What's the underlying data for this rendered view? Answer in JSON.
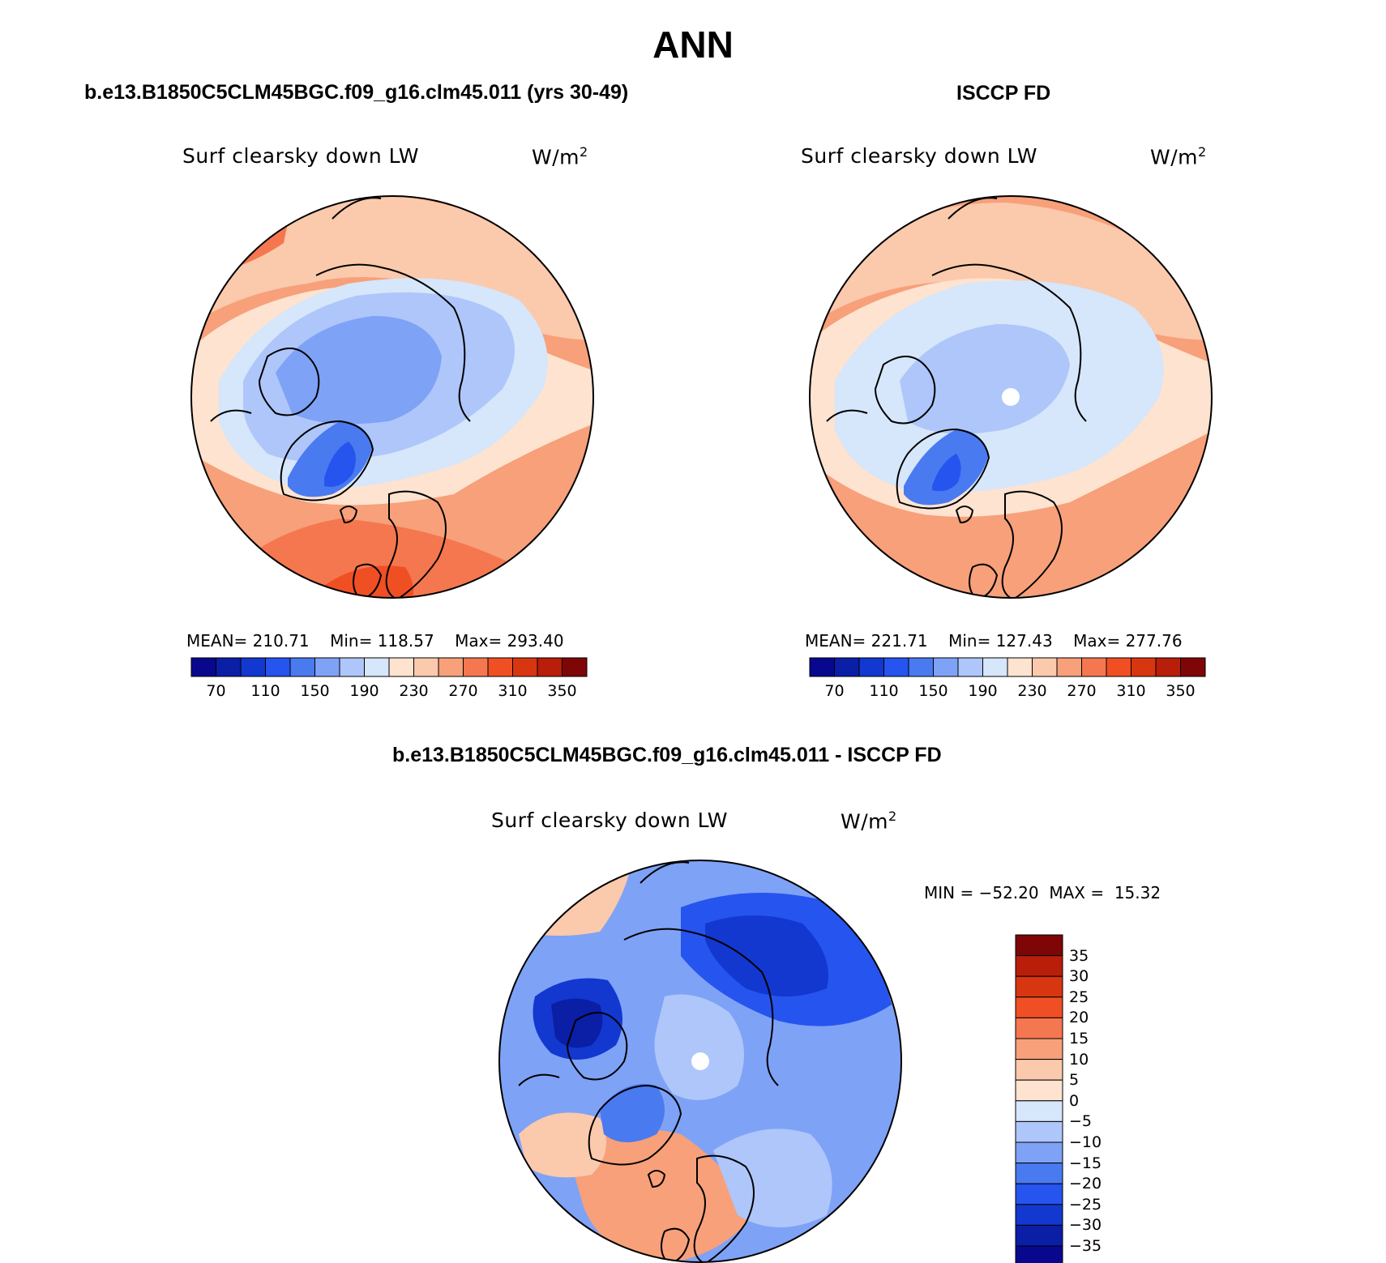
{
  "figure": {
    "season": "ANN"
  },
  "panels": [
    {
      "id": "model",
      "case_title": "b.e13.B1850C5CLM45BGC.f09_g16.clm45.011 (yrs 30-49)",
      "variable": "Surf clearsky down LW",
      "units": "W/m",
      "units_exponent": "2",
      "stats": {
        "mean_label": "MEAN=",
        "mean": "210.71",
        "min_label": "Min=",
        "min": "118.57",
        "max_label": "Max=",
        "max": "293.40"
      },
      "colorbar_ticks": [
        "70",
        "110",
        "150",
        "190",
        "230",
        "270",
        "310",
        "350"
      ]
    },
    {
      "id": "obs",
      "case_title": "ISCCP FD",
      "variable": "Surf clearsky down LW",
      "units": "W/m",
      "units_exponent": "2",
      "stats": {
        "mean_label": "MEAN=",
        "mean": "221.71",
        "min_label": "Min=",
        "min": "127.43",
        "max_label": "Max=",
        "max": "277.76"
      },
      "colorbar_ticks": [
        "70",
        "110",
        "150",
        "190",
        "230",
        "270",
        "310",
        "350"
      ]
    },
    {
      "id": "diff",
      "case_title": "b.e13.B1850C5CLM45BGC.f09_g16.clm45.011 - ISCCP FD",
      "variable": "Surf clearsky down LW",
      "units": "W/m",
      "units_exponent": "2",
      "stats": {
        "min_label": "MIN =",
        "min": "−52.20",
        "max_label": "MAX =",
        "max": "15.32"
      },
      "colorbar_ticks": [
        "35",
        "30",
        "25",
        "20",
        "15",
        "10",
        "5",
        "0",
        "−5",
        "−10",
        "−15",
        "−20",
        "−25",
        "−30",
        "−35"
      ]
    }
  ],
  "palettes": {
    "abs_fill": [
      "#08088f",
      "#0a1ea6",
      "#1238d0",
      "#2654ee",
      "#4a7af0",
      "#7ea2f6",
      "#aec6fa",
      "#d6e6fb",
      "#fde3d0",
      "#fbc9ac",
      "#f7a07a",
      "#f5774f",
      "#f04f24",
      "#d83610",
      "#b81e0a",
      "#7e0606"
    ],
    "diff_fill_top_to_bottom": [
      "#7e0606",
      "#b81e0a",
      "#d83610",
      "#f04f24",
      "#f5774f",
      "#f7a07a",
      "#fbc9ac",
      "#fde3d0",
      "#d6e6fb",
      "#aec6fa",
      "#7ea2f6",
      "#4a7af0",
      "#2654ee",
      "#1238d0",
      "#0a1ea6",
      "#08088f"
    ]
  }
}
